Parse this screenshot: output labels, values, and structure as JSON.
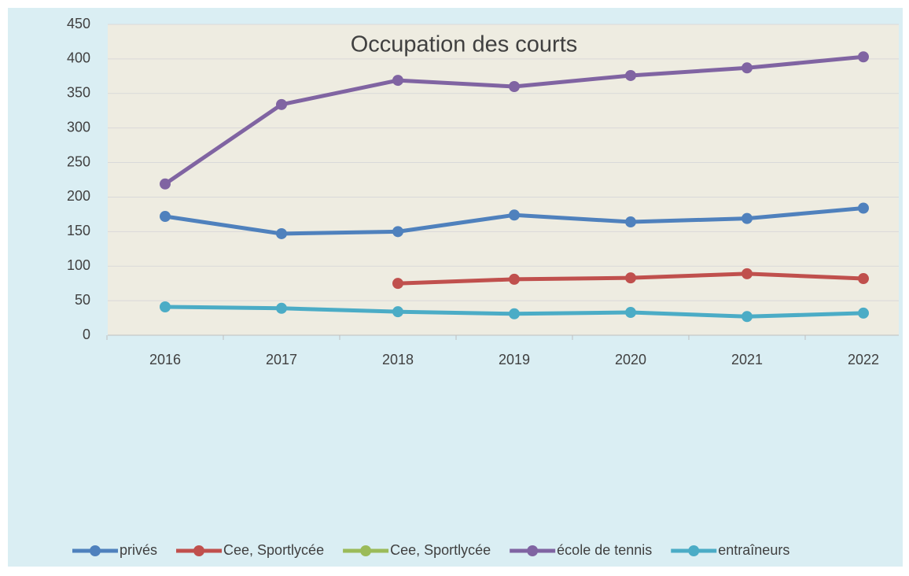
{
  "chart_data": {
    "type": "line",
    "title": "Occupation des courts",
    "categories": [
      "2016",
      "2017",
      "2018",
      "2019",
      "2020",
      "2021",
      "2022"
    ],
    "series": [
      {
        "name": "privés",
        "color": "#4f81bd",
        "values": [
          172,
          147,
          150,
          174,
          164,
          169,
          184
        ]
      },
      {
        "name": "Cee, Sportlycée",
        "color": "#c0504d",
        "values": [
          null,
          null,
          75,
          81,
          83,
          89,
          82
        ]
      },
      {
        "name": "Cee, Sportlycée",
        "color": "#9bbb59",
        "values": [
          null,
          null,
          null,
          null,
          null,
          null,
          null
        ]
      },
      {
        "name": "école de tennis",
        "color": "#8064a2",
        "values": [
          219,
          334,
          369,
          360,
          376,
          387,
          403
        ]
      },
      {
        "name": "entraîneurs",
        "color": "#4bacc6",
        "values": [
          41,
          39,
          34,
          31,
          33,
          27,
          32
        ]
      }
    ],
    "ylim": [
      0,
      450
    ],
    "yticks": [
      0,
      50,
      100,
      150,
      200,
      250,
      300,
      350,
      400,
      450
    ],
    "grid": true,
    "legend": "bottom"
  }
}
